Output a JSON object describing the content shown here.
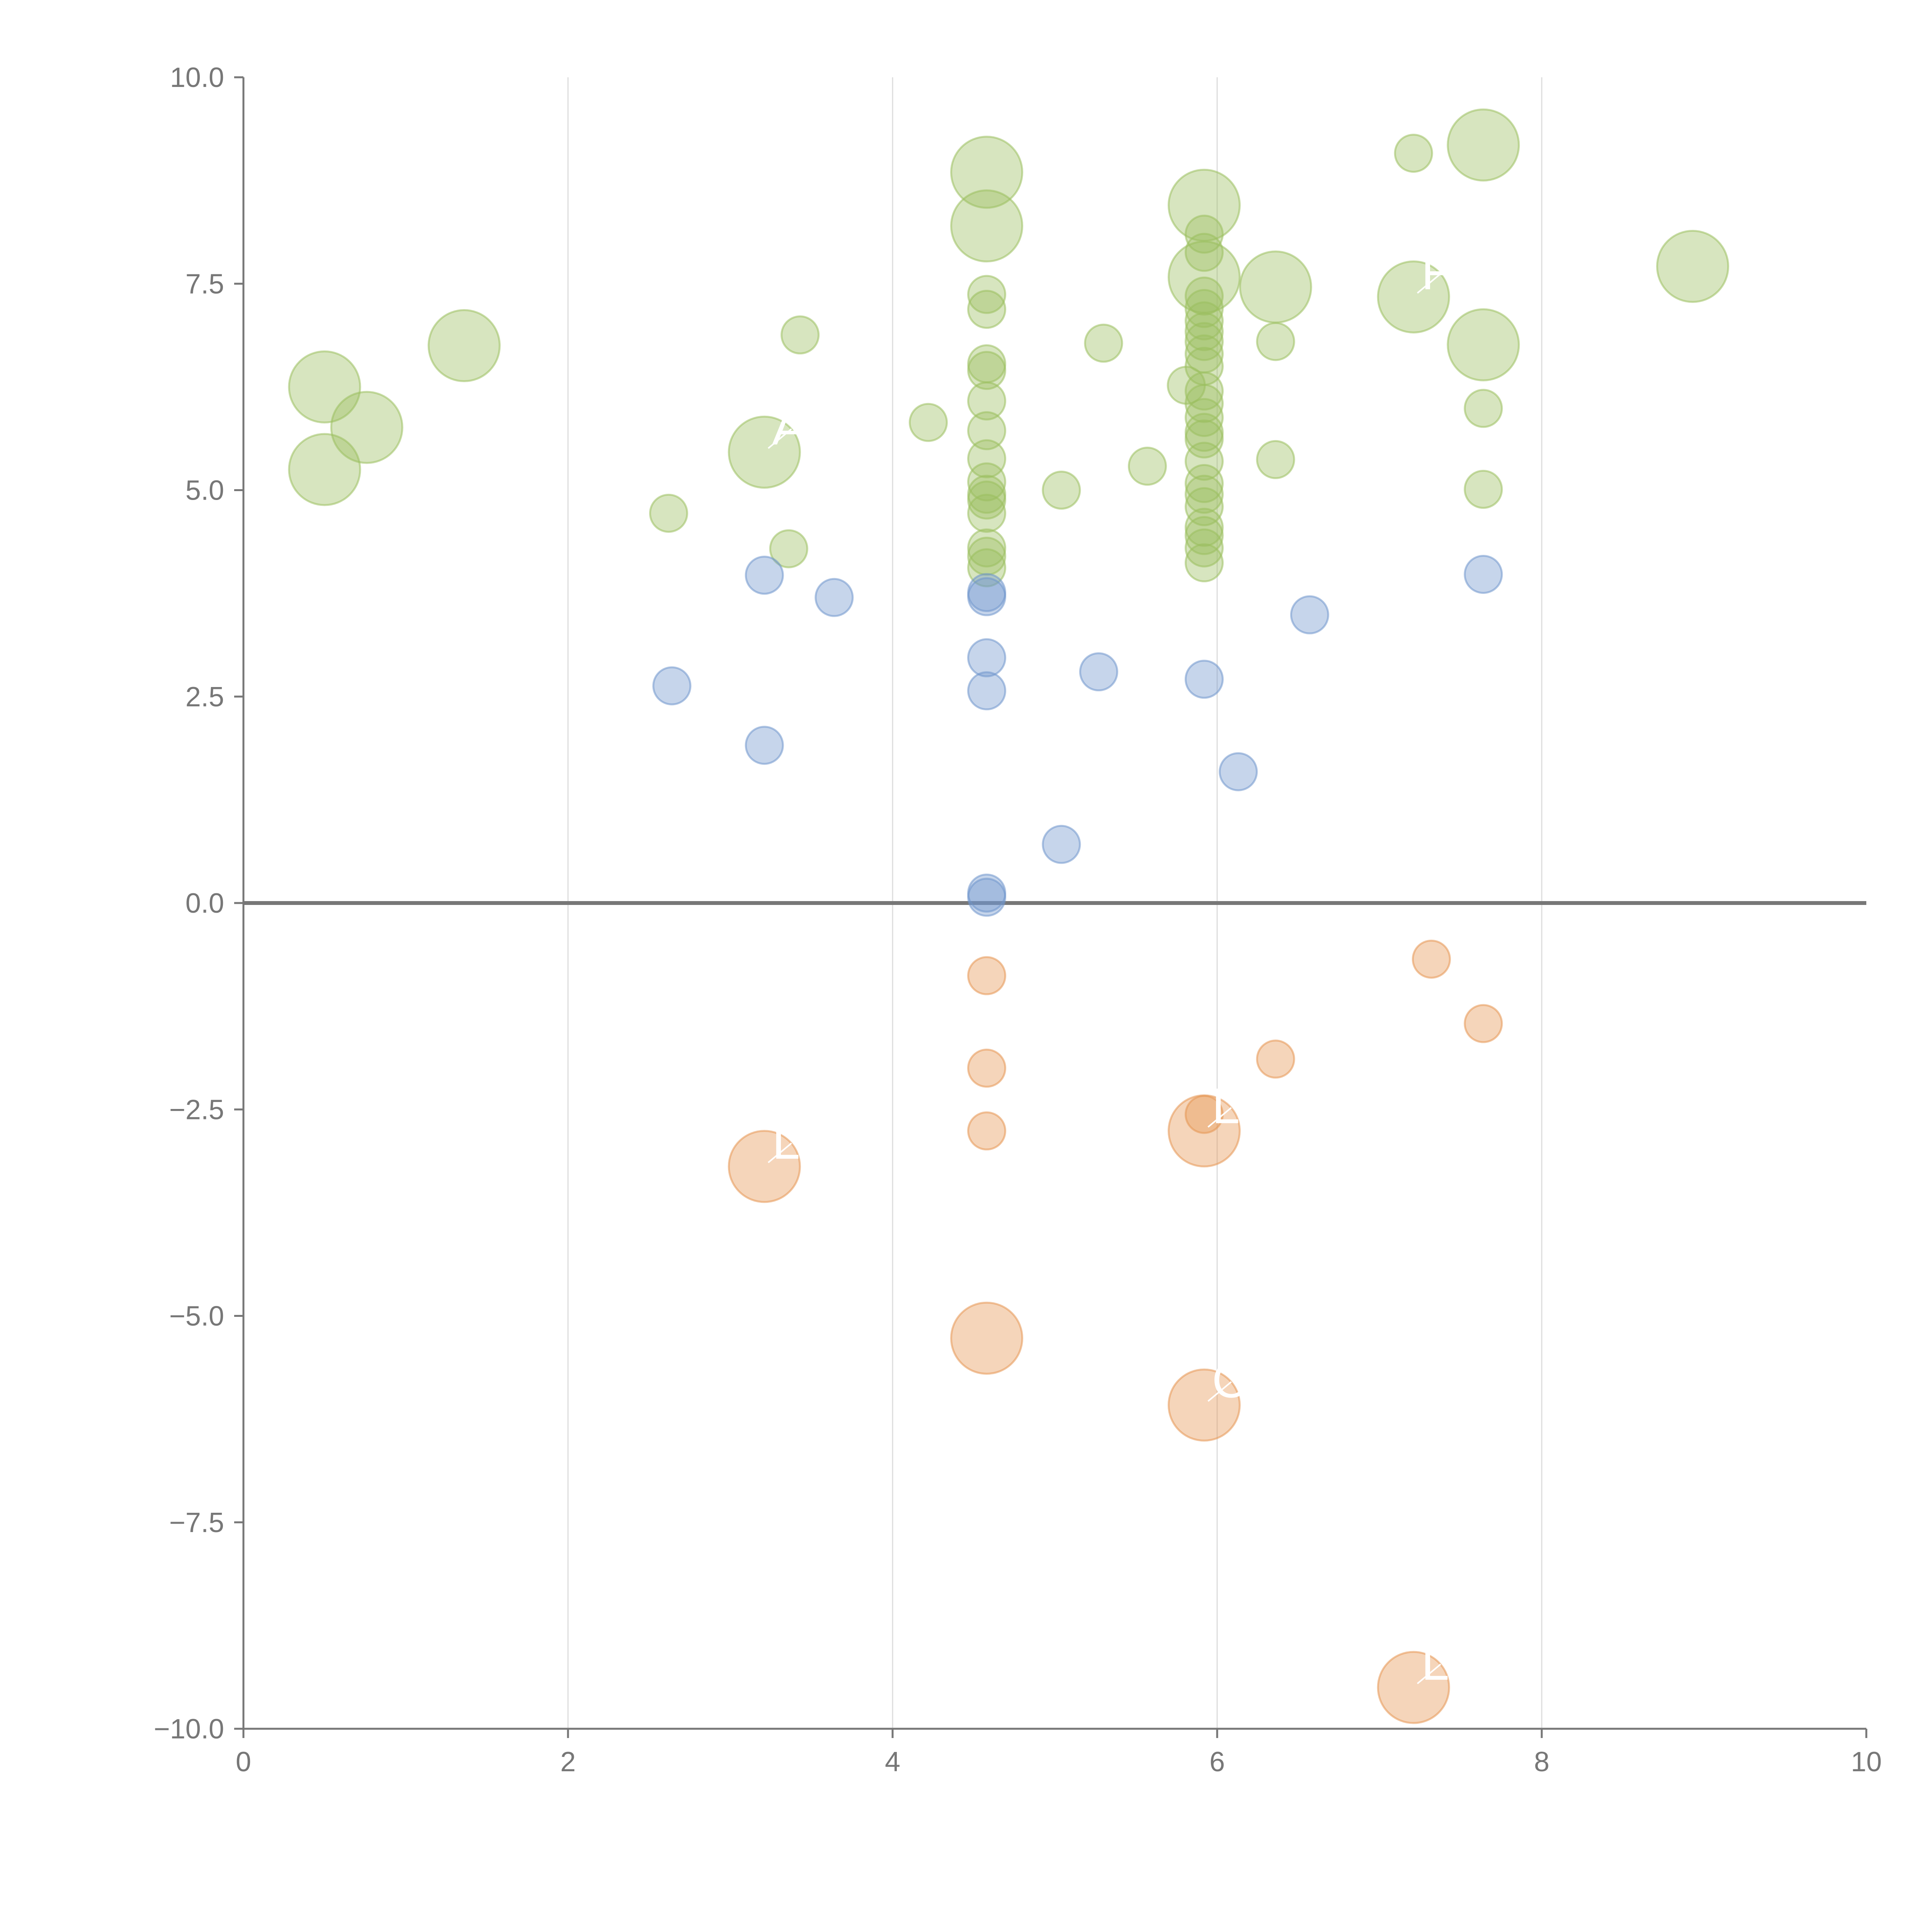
{
  "chart_data": {
    "type": "scatter",
    "title": "",
    "xlabel": "",
    "ylabel": "",
    "xlim": [
      0,
      10
    ],
    "ylim": [
      -10,
      10
    ],
    "xticks": [
      "0",
      "2",
      "4",
      "6",
      "8",
      "10"
    ],
    "yticks": [
      "10.0",
      "7.5",
      "5.0",
      "2.5",
      "0.0",
      "−2.5",
      "−5.0",
      "−7.5",
      "−10.0"
    ],
    "x_gridlines": [
      2,
      4,
      6,
      8
    ],
    "zero_line": 0,
    "colors": {
      "positive": "#9bbf5e",
      "neutral": "#7096cc",
      "negative": "#e69552",
      "axis": "#777777",
      "grid": "#dcdcdc"
    },
    "series": [
      {
        "name": "positive",
        "color": "#9bbf5e",
        "points": [
          {
            "x": 0.5,
            "y": 6.25,
            "size": "large"
          },
          {
            "x": 0.76,
            "y": 5.76,
            "size": "large"
          },
          {
            "x": 0.5,
            "y": 5.25,
            "size": "large"
          },
          {
            "x": 1.36,
            "y": 6.75,
            "size": "large"
          },
          {
            "x": 2.62,
            "y": 4.72,
            "size": "small"
          },
          {
            "x": 3.21,
            "y": 5.46,
            "size": "large"
          },
          {
            "x": 3.36,
            "y": 4.29,
            "size": "small"
          },
          {
            "x": 3.43,
            "y": 6.88,
            "size": "small"
          },
          {
            "x": 4.22,
            "y": 5.82,
            "size": "small"
          },
          {
            "x": 4.58,
            "y": 8.85,
            "size": "large"
          },
          {
            "x": 4.58,
            "y": 8.2,
            "size": "large"
          },
          {
            "x": 4.58,
            "y": 7.37,
            "size": "small"
          },
          {
            "x": 4.58,
            "y": 7.19,
            "size": "small"
          },
          {
            "x": 4.58,
            "y": 6.53,
            "size": "small"
          },
          {
            "x": 4.58,
            "y": 6.45,
            "size": "small"
          },
          {
            "x": 4.58,
            "y": 6.08,
            "size": "small"
          },
          {
            "x": 4.58,
            "y": 5.72,
            "size": "small"
          },
          {
            "x": 4.58,
            "y": 5.38,
            "size": "small"
          },
          {
            "x": 4.58,
            "y": 5.1,
            "size": "small"
          },
          {
            "x": 4.58,
            "y": 4.95,
            "size": "small"
          },
          {
            "x": 4.58,
            "y": 4.88,
            "size": "small"
          },
          {
            "x": 4.58,
            "y": 4.72,
            "size": "small"
          },
          {
            "x": 4.58,
            "y": 4.3,
            "size": "small"
          },
          {
            "x": 4.58,
            "y": 4.2,
            "size": "small"
          },
          {
            "x": 4.58,
            "y": 4.06,
            "size": "small"
          },
          {
            "x": 5.04,
            "y": 5.0,
            "size": "small"
          },
          {
            "x": 5.3,
            "y": 6.78,
            "size": "small"
          },
          {
            "x": 5.57,
            "y": 5.29,
            "size": "small"
          },
          {
            "x": 5.81,
            "y": 6.27,
            "size": "small"
          },
          {
            "x": 5.92,
            "y": 8.45,
            "size": "large"
          },
          {
            "x": 5.92,
            "y": 8.1,
            "size": "small"
          },
          {
            "x": 5.92,
            "y": 7.88,
            "size": "small"
          },
          {
            "x": 5.92,
            "y": 7.58,
            "size": "large"
          },
          {
            "x": 5.92,
            "y": 7.35,
            "size": "small"
          },
          {
            "x": 5.92,
            "y": 7.2,
            "size": "small"
          },
          {
            "x": 5.92,
            "y": 7.05,
            "size": "small"
          },
          {
            "x": 5.92,
            "y": 6.92,
            "size": "small"
          },
          {
            "x": 5.92,
            "y": 6.8,
            "size": "small"
          },
          {
            "x": 5.92,
            "y": 6.65,
            "size": "small"
          },
          {
            "x": 5.92,
            "y": 6.5,
            "size": "small"
          },
          {
            "x": 5.92,
            "y": 6.2,
            "size": "small"
          },
          {
            "x": 5.92,
            "y": 6.05,
            "size": "small"
          },
          {
            "x": 5.92,
            "y": 5.88,
            "size": "small"
          },
          {
            "x": 5.92,
            "y": 5.7,
            "size": "small"
          },
          {
            "x": 5.92,
            "y": 5.62,
            "size": "small"
          },
          {
            "x": 5.92,
            "y": 5.35,
            "size": "small"
          },
          {
            "x": 5.92,
            "y": 5.08,
            "size": "small"
          },
          {
            "x": 5.92,
            "y": 4.95,
            "size": "small"
          },
          {
            "x": 5.92,
            "y": 4.8,
            "size": "small"
          },
          {
            "x": 5.92,
            "y": 4.55,
            "size": "small"
          },
          {
            "x": 5.92,
            "y": 4.45,
            "size": "small"
          },
          {
            "x": 5.92,
            "y": 4.3,
            "size": "small"
          },
          {
            "x": 5.92,
            "y": 4.12,
            "size": "small"
          },
          {
            "x": 6.36,
            "y": 7.46,
            "size": "large"
          },
          {
            "x": 6.36,
            "y": 6.8,
            "size": "small"
          },
          {
            "x": 6.36,
            "y": 5.37,
            "size": "small"
          },
          {
            "x": 7.21,
            "y": 9.08,
            "size": "small"
          },
          {
            "x": 7.21,
            "y": 7.34,
            "size": "large"
          },
          {
            "x": 7.64,
            "y": 9.18,
            "size": "large"
          },
          {
            "x": 7.64,
            "y": 6.76,
            "size": "large"
          },
          {
            "x": 7.64,
            "y": 5.99,
            "size": "small"
          },
          {
            "x": 7.64,
            "y": 5.01,
            "size": "small"
          },
          {
            "x": 8.93,
            "y": 7.71,
            "size": "large"
          }
        ]
      },
      {
        "name": "neutral",
        "color": "#7096cc",
        "points": [
          {
            "x": 2.64,
            "y": 2.63,
            "size": "small"
          },
          {
            "x": 3.21,
            "y": 3.97,
            "size": "small"
          },
          {
            "x": 3.21,
            "y": 1.91,
            "size": "small"
          },
          {
            "x": 3.64,
            "y": 3.7,
            "size": "small"
          },
          {
            "x": 4.58,
            "y": 3.76,
            "size": "small"
          },
          {
            "x": 4.58,
            "y": 3.71,
            "size": "small"
          },
          {
            "x": 4.58,
            "y": 2.97,
            "size": "small"
          },
          {
            "x": 4.58,
            "y": 2.57,
            "size": "small"
          },
          {
            "x": 4.58,
            "y": 0.12,
            "size": "small"
          },
          {
            "x": 4.58,
            "y": 0.07,
            "size": "small"
          },
          {
            "x": 5.04,
            "y": 0.71,
            "size": "small"
          },
          {
            "x": 5.27,
            "y": 2.8,
            "size": "small"
          },
          {
            "x": 5.92,
            "y": 2.71,
            "size": "small"
          },
          {
            "x": 6.13,
            "y": 1.59,
            "size": "small"
          },
          {
            "x": 6.57,
            "y": 3.49,
            "size": "small"
          },
          {
            "x": 7.64,
            "y": 3.98,
            "size": "small"
          }
        ]
      },
      {
        "name": "negative",
        "color": "#e69552",
        "points": [
          {
            "x": 3.21,
            "y": -3.19,
            "size": "large"
          },
          {
            "x": 4.58,
            "y": -0.88,
            "size": "small"
          },
          {
            "x": 4.58,
            "y": -2.0,
            "size": "small"
          },
          {
            "x": 4.58,
            "y": -2.76,
            "size": "small"
          },
          {
            "x": 4.58,
            "y": -5.27,
            "size": "large"
          },
          {
            "x": 5.92,
            "y": -2.56,
            "size": "small"
          },
          {
            "x": 5.92,
            "y": -2.76,
            "size": "large"
          },
          {
            "x": 5.92,
            "y": -6.08,
            "size": "large"
          },
          {
            "x": 6.36,
            "y": -1.89,
            "size": "small"
          },
          {
            "x": 7.21,
            "y": -9.5,
            "size": "large"
          },
          {
            "x": 7.32,
            "y": -0.68,
            "size": "small"
          },
          {
            "x": 7.64,
            "y": -1.46,
            "size": "small"
          }
        ]
      }
    ],
    "annotations": [
      {
        "text": "A",
        "x": 3.21,
        "y": 5.46
      },
      {
        "text": "F",
        "x": 7.21,
        "y": 7.34
      },
      {
        "text": "L",
        "x": 3.21,
        "y": -3.19
      },
      {
        "text": "L",
        "x": 5.92,
        "y": -2.76
      },
      {
        "text": "C",
        "x": 5.92,
        "y": -6.08
      },
      {
        "text": "L",
        "x": 7.21,
        "y": -9.5
      }
    ]
  }
}
